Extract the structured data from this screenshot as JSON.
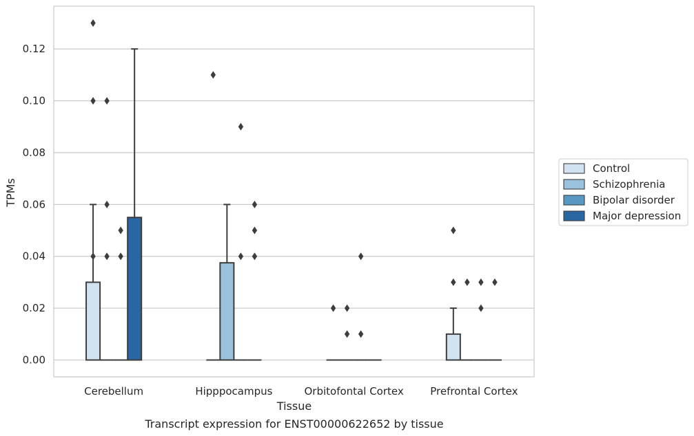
{
  "chart_data": {
    "type": "boxplot",
    "title": "Transcript expression for ENST00000622652 by tissue",
    "xlabel": "Tissue",
    "ylabel": "TPMs",
    "ylim": [
      -0.0065,
      0.1365
    ],
    "yticks": [
      "0.00",
      "0.02",
      "0.04",
      "0.06",
      "0.08",
      "0.10",
      "0.12"
    ],
    "ytick_values": [
      0,
      0.02,
      0.04,
      0.06,
      0.08,
      0.1,
      0.12
    ],
    "grid": "horizontal",
    "legend_position": "right",
    "categories": [
      "Cerebellum",
      "Hipppocampus",
      "Orbitofontal Cortex",
      "Prefrontal Cortex"
    ],
    "series": [
      {
        "name": "Control",
        "color": "#d2e2f1",
        "boxes": [
          {
            "q1": 0,
            "median": 0,
            "q3": 0.03,
            "whisker_low": 0,
            "whisker_high": 0.06,
            "outliers": [
              0.13,
              0.1,
              0.04
            ]
          },
          {
            "q1": 0,
            "median": 0,
            "q3": 0,
            "whisker_low": 0,
            "whisker_high": 0,
            "outliers": [
              0.11
            ]
          },
          {
            "q1": 0,
            "median": 0,
            "q3": 0,
            "whisker_low": 0,
            "whisker_high": 0,
            "outliers": [
              0.02
            ]
          },
          {
            "q1": 0,
            "median": 0,
            "q3": 0.01,
            "whisker_low": 0,
            "whisker_high": 0.02,
            "outliers": [
              0.05,
              0.03
            ]
          }
        ]
      },
      {
        "name": "Schizophrenia",
        "color": "#9ac2dc",
        "boxes": [
          {
            "q1": 0,
            "median": 0,
            "q3": 0,
            "whisker_low": 0,
            "whisker_high": 0,
            "outliers": [
              0.1,
              0.06,
              0.04
            ]
          },
          {
            "q1": 0,
            "median": 0,
            "q3": 0.0375,
            "whisker_low": 0,
            "whisker_high": 0.06,
            "outliers": []
          },
          {
            "q1": 0,
            "median": 0,
            "q3": 0,
            "whisker_low": 0,
            "whisker_high": 0,
            "outliers": [
              0.02,
              0.01
            ]
          },
          {
            "q1": 0,
            "median": 0,
            "q3": 0,
            "whisker_low": 0,
            "whisker_high": 0,
            "outliers": [
              0.03
            ]
          }
        ]
      },
      {
        "name": "Bipolar disorder",
        "color": "#5a98c4",
        "boxes": [
          {
            "q1": 0,
            "median": 0,
            "q3": 0,
            "whisker_low": 0,
            "whisker_high": 0,
            "outliers": [
              0.05,
              0.04
            ]
          },
          {
            "q1": 0,
            "median": 0,
            "q3": 0,
            "whisker_low": 0,
            "whisker_high": 0,
            "outliers": [
              0.09,
              0.04
            ]
          },
          {
            "q1": 0,
            "median": 0,
            "q3": 0,
            "whisker_low": 0,
            "whisker_high": 0,
            "outliers": [
              0.04,
              0.01
            ]
          },
          {
            "q1": 0,
            "median": 0,
            "q3": 0,
            "whisker_low": 0,
            "whisker_high": 0,
            "outliers": [
              0.03,
              0.02
            ]
          }
        ]
      },
      {
        "name": "Major depression",
        "color": "#2a67a2",
        "boxes": [
          {
            "q1": 0,
            "median": 0,
            "q3": 0.055,
            "whisker_low": 0,
            "whisker_high": 0.12,
            "outliers": []
          },
          {
            "q1": 0,
            "median": 0,
            "q3": 0,
            "whisker_low": 0,
            "whisker_high": 0,
            "outliers": [
              0.06,
              0.05,
              0.04
            ]
          },
          {
            "q1": 0,
            "median": 0,
            "q3": 0,
            "whisker_low": 0,
            "whisker_high": 0,
            "outliers": []
          },
          {
            "q1": 0,
            "median": 0,
            "q3": 0,
            "whisker_low": 0,
            "whisker_high": 0,
            "outliers": [
              0.03
            ]
          }
        ]
      }
    ]
  }
}
